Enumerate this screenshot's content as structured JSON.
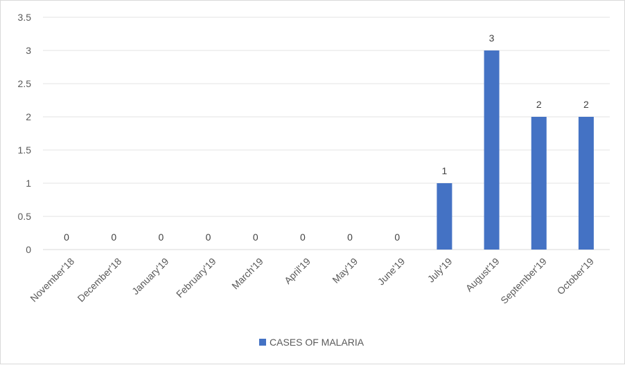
{
  "chart_data": {
    "type": "bar",
    "categories": [
      "November'18",
      "December'18",
      "January'19",
      "February'19",
      "March'19",
      "April'19",
      "May'19",
      "June'19",
      "July'19",
      "August'19",
      "September'19",
      "October'19"
    ],
    "series": [
      {
        "name": "CASES OF MALARIA",
        "values": [
          0,
          0,
          0,
          0,
          0,
          0,
          0,
          0,
          1,
          3,
          2,
          2
        ],
        "color": "#4472C4"
      }
    ],
    "y_ticks": [
      "0",
      "0.5",
      "1",
      "1.5",
      "2",
      "2.5",
      "3",
      "3.5"
    ],
    "ylim": [
      0,
      3.5
    ],
    "grid": true,
    "legend_position": "bottom",
    "data_labels": true
  }
}
